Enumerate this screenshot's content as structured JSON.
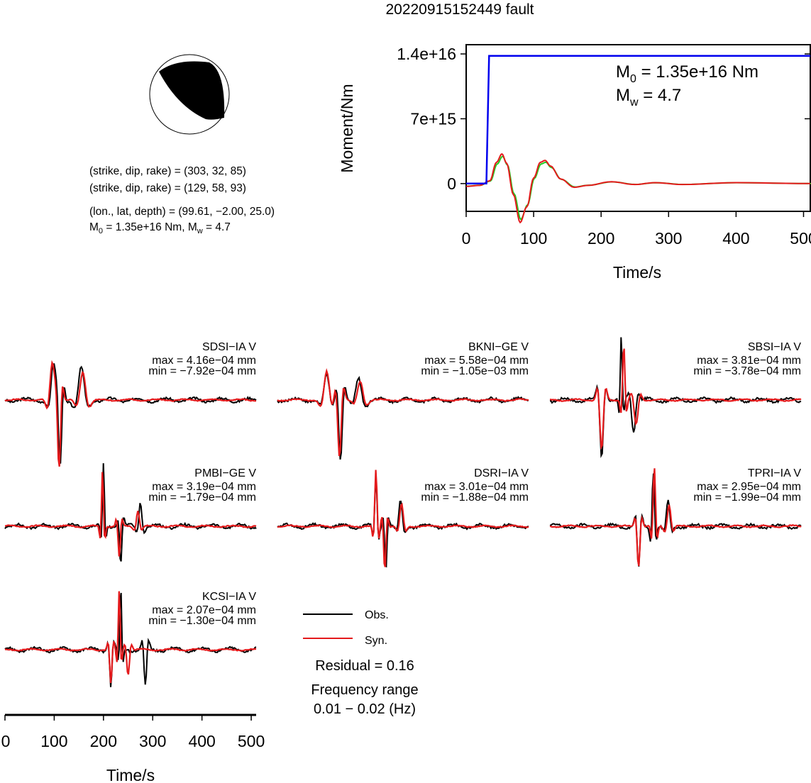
{
  "title": "20220915152449 fault",
  "mechanism": {
    "plane1": "(strike, dip, rake) = (303, 32, 85)",
    "plane2": "(strike, dip, rake) = (129, 58, 93)",
    "location": "(lon., lat, depth) = (99.61, −2.00, 25.0)",
    "moment_prefix": "M",
    "moment_sub": "0",
    "moment_mid": " = 1.35e+16 Nm, M",
    "moment_sub2": "w",
    "moment_suffix": " = 4.7"
  },
  "colors": {
    "observed": "#000000",
    "synthetic": "#e41a1c",
    "moment": "#0000ee",
    "source_time": "#22cc22",
    "beachball_fill": "#000000"
  },
  "chart_data": [
    {
      "type": "line",
      "panel": "moment-function",
      "xlabel": "Time/s",
      "ylabel": "Moment/Nm",
      "xlim": [
        0,
        510
      ],
      "ylim": [
        -3000000000000000.0,
        1.5e+16
      ],
      "xticks": [
        0,
        100,
        200,
        300,
        400,
        500
      ],
      "yticks": [
        {
          "value": 0,
          "label": "0"
        },
        {
          "value": 7000000000000000.0,
          "label": "7e+15"
        },
        {
          "value": 1.4e+16,
          "label": "1.4e+16"
        }
      ],
      "annotation": {
        "m0_prefix": "M",
        "m0_sub": "0",
        "m0_suffix": " = 1.35e+16 Nm",
        "mw_prefix": "M",
        "mw_sub": "w",
        "mw_suffix": " = 4.7"
      },
      "moment_curve": {
        "x": [
          0,
          30,
          34,
          36,
          510
        ],
        "y": [
          0,
          0,
          1.38e+16,
          1.38e+16,
          1.38e+16
        ]
      },
      "source_time": [
        {
          "x": 0,
          "y": -300000000000000.0
        },
        {
          "x": 20,
          "y": -200000000000000.0
        },
        {
          "x": 35,
          "y": 300000000000000.0
        },
        {
          "x": 45,
          "y": 2300000000000000.0
        },
        {
          "x": 53,
          "y": 3200000000000000.0
        },
        {
          "x": 60,
          "y": 2200000000000000.0
        },
        {
          "x": 70,
          "y": -1200000000000000.0
        },
        {
          "x": 80,
          "y": -4200000000000000.0
        },
        {
          "x": 90,
          "y": -2500000000000000.0
        },
        {
          "x": 100,
          "y": 600000000000000.0
        },
        {
          "x": 110,
          "y": 2300000000000000.0
        },
        {
          "x": 117,
          "y": 2500000000000000.0
        },
        {
          "x": 125,
          "y": 1900000000000000.0
        },
        {
          "x": 140,
          "y": 500000000000000.0
        },
        {
          "x": 160,
          "y": -400000000000000.0
        },
        {
          "x": 180,
          "y": -200000000000000.0
        },
        {
          "x": 215,
          "y": 200000000000000.0
        },
        {
          "x": 250,
          "y": -100000000000000.0
        },
        {
          "x": 280,
          "y": 100000000000000.0
        },
        {
          "x": 320,
          "y": -100000000000000.0
        },
        {
          "x": 400,
          "y": 100000000000000.0
        },
        {
          "x": 510,
          "y": 0
        }
      ]
    },
    {
      "type": "line",
      "panel": "waveforms",
      "xlabel": "Time/s",
      "xlim": [
        0,
        510
      ],
      "xticks": [
        0,
        100,
        200,
        300,
        400,
        500
      ],
      "series_names": [
        "Obs.",
        "Syn."
      ],
      "stations": [
        {
          "name": "SDSI−IA V",
          "max": "max = 4.16e−04 mm",
          "min": "min = −7.92e−04 mm",
          "max_value": 0.000416,
          "min_value": -0.000792,
          "obs_events": [
            [
              98,
              0.55,
              22
            ],
            [
              112,
              -1.0,
              16
            ],
            [
              155,
              0.5,
              30
            ]
          ],
          "syn_events": [
            [
              96,
              0.6,
              22
            ],
            [
              110,
              -1.0,
              15
            ],
            [
              158,
              0.45,
              28
            ]
          ]
        },
        {
          "name": "BKNI−GE V",
          "max": "max = 5.58e−04 mm",
          "min": "min = −1.05e−03 mm",
          "max_value": 0.000558,
          "min_value": -0.00105,
          "obs_events": [
            [
              100,
              0.4,
              26
            ],
            [
              128,
              -0.95,
              18
            ],
            [
              165,
              0.35,
              30
            ]
          ],
          "syn_events": [
            [
              100,
              0.45,
              26
            ],
            [
              126,
              -0.9,
              18
            ],
            [
              168,
              0.3,
              28
            ]
          ]
        },
        {
          "name": "SBSI−IA V",
          "max": "max = 3.81e−04 mm",
          "min": "min = −3.78e−04 mm",
          "max_value": 0.000381,
          "min_value": -0.000378,
          "obs_events": [
            [
              105,
              -0.9,
              18
            ],
            [
              145,
              1.0,
              10
            ],
            [
              170,
              -0.5,
              20
            ]
          ],
          "syn_events": [
            [
              105,
              -0.8,
              18
            ],
            [
              150,
              0.9,
              12
            ],
            [
              175,
              -0.4,
              20
            ]
          ]
        },
        {
          "name": "PMBI−GE V",
          "max": "max = 3.19e−04 mm",
          "min": "min = −1.79e−04 mm",
          "max_value": 0.000319,
          "min_value": -0.000179,
          "obs_events": [
            [
              200,
              1.0,
              10
            ],
            [
              235,
              -0.6,
              12
            ],
            [
              275,
              0.4,
              16
            ]
          ],
          "syn_events": [
            [
              198,
              0.9,
              10
            ],
            [
              232,
              -0.5,
              12
            ],
            [
              270,
              0.25,
              16
            ]
          ]
        },
        {
          "name": "DSRI−IA V",
          "max": "max = 3.01e−04 mm",
          "min": "min = −1.88e−04 mm",
          "max_value": 0.000301,
          "min_value": -0.000188,
          "obs_events": [
            [
              200,
              0.8,
              12
            ],
            [
              220,
              -0.7,
              12
            ],
            [
              250,
              0.4,
              18
            ]
          ],
          "syn_events": [
            [
              200,
              0.9,
              12
            ],
            [
              218,
              -0.7,
              12
            ],
            [
              252,
              0.35,
              18
            ]
          ]
        },
        {
          "name": "TPRI−IA V",
          "max": "max = 2.95e−04 mm",
          "min": "min = −1.99e−04 mm",
          "max_value": 0.000295,
          "min_value": -0.000199,
          "obs_events": [
            [
              210,
              0.9,
              12
            ],
            [
              180,
              -0.7,
              14
            ],
            [
              240,
              0.4,
              18
            ]
          ],
          "syn_events": [
            [
              212,
              0.95,
              12
            ],
            [
              180,
              -0.65,
              14
            ],
            [
              242,
              0.35,
              18
            ]
          ]
        },
        {
          "name": "KCSI−IA V",
          "max": "max = 2.07e−04 mm",
          "min": "min = −1.30e−04 mm",
          "max_value": 0.000207,
          "min_value": -0.00013,
          "obs_events": [
            [
              235,
              1.0,
              10
            ],
            [
              215,
              -0.6,
              12
            ],
            [
              285,
              -0.6,
              14
            ]
          ],
          "syn_events": [
            [
              232,
              0.95,
              10
            ],
            [
              215,
              -0.55,
              12
            ],
            [
              250,
              -0.4,
              14
            ]
          ]
        }
      ]
    }
  ],
  "legend": {
    "obs_label": "Obs.",
    "syn_label": "Syn."
  },
  "residual": "Residual = 0.16",
  "frequency_label": "Frequency range",
  "frequency_value": "0.01 − 0.02 (Hz)"
}
